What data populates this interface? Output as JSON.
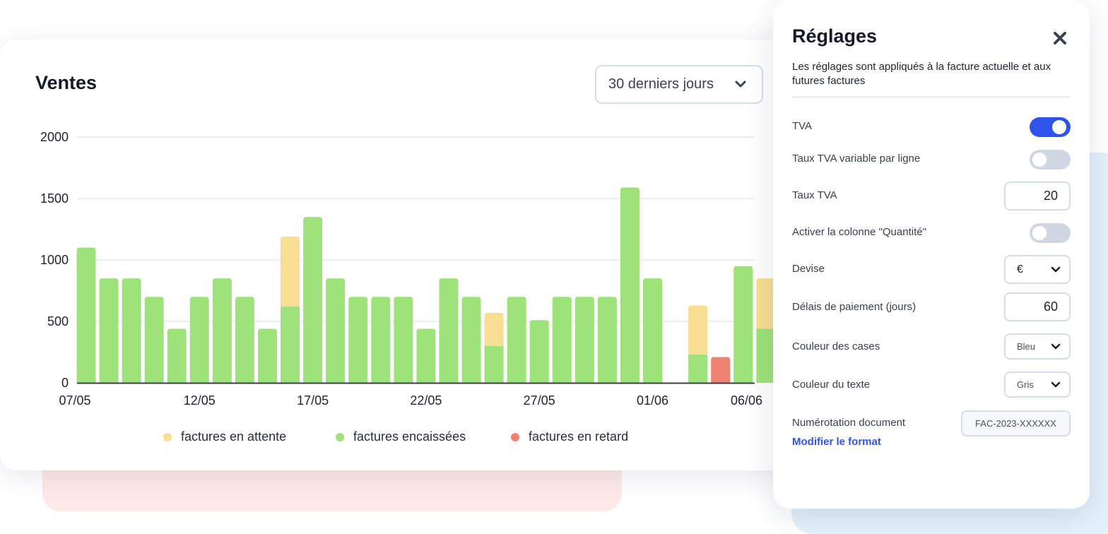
{
  "chart_data": {
    "type": "bar",
    "stacked": true,
    "title": "Ventes",
    "ylim": [
      0,
      2000
    ],
    "yticks": [
      0,
      500,
      1000,
      1500,
      2000
    ],
    "xtick_labels": [
      "07/05",
      "12/05",
      "17/05",
      "22/05",
      "27/05",
      "01/06",
      "06/06"
    ],
    "xtick_indices": [
      0,
      5,
      10,
      15,
      20,
      25,
      30
    ],
    "categories": [
      "07/05",
      "08/05",
      "09/05",
      "10/05",
      "11/05",
      "12/05",
      "13/05",
      "14/05",
      "15/05",
      "16/05",
      "17/05",
      "18/05",
      "19/05",
      "20/05",
      "21/05",
      "22/05",
      "23/05",
      "24/05",
      "25/05",
      "26/05",
      "27/05",
      "28/05",
      "29/05",
      "30/05",
      "31/05",
      "01/06",
      "02/06",
      "03/06",
      "04/06",
      "05/06",
      "06/06"
    ],
    "series": [
      {
        "name": "factures en retard",
        "color": "#ef8270",
        "values": [
          0,
          0,
          0,
          0,
          0,
          0,
          0,
          0,
          0,
          0,
          0,
          0,
          0,
          0,
          0,
          0,
          0,
          0,
          0,
          0,
          0,
          0,
          0,
          0,
          0,
          0,
          0,
          0,
          210,
          0,
          0
        ]
      },
      {
        "name": "factures encaissées",
        "color": "#9ee27a",
        "values": [
          1100,
          850,
          850,
          700,
          440,
          700,
          850,
          700,
          440,
          620,
          1350,
          850,
          700,
          700,
          700,
          440,
          850,
          700,
          300,
          700,
          510,
          700,
          700,
          700,
          1590,
          850,
          0,
          230,
          0,
          950,
          440
        ]
      },
      {
        "name": "factures en attente",
        "color": "#f7de92",
        "values": [
          0,
          0,
          0,
          0,
          0,
          0,
          0,
          0,
          0,
          570,
          0,
          0,
          0,
          0,
          0,
          0,
          0,
          0,
          270,
          0,
          0,
          0,
          0,
          0,
          0,
          0,
          0,
          400,
          0,
          0,
          410
        ]
      }
    ],
    "legend": [
      "factures en attente",
      "factures encaissées",
      "factures en retard"
    ]
  },
  "chart": {
    "range_label": "30 derniers jours"
  },
  "legend_labels": {
    "pending": "factures en attente",
    "paid": "factures encaissées",
    "late": "factures en retard"
  },
  "colors": {
    "accent": "#2f54eb",
    "pending": "#f7de92",
    "paid": "#9ee27a",
    "late": "#ef8270"
  },
  "settings": {
    "title": "Réglages",
    "description": "Les réglages sont appliqués à la facture actuelle et aux futures factures",
    "tva_label": "TVA",
    "tva_enabled": true,
    "variable_rate_label": "Taux TVA variable par ligne",
    "variable_rate_enabled": false,
    "rate_label": "Taux TVA",
    "rate_value": "20",
    "quantity_label": "Activer la colonne \"Quantité\"",
    "quantity_enabled": false,
    "currency_label": "Devise",
    "currency_value": "€",
    "payment_delay_label": "Délais de paiement (jours)",
    "payment_delay_value": "60",
    "box_color_label": "Couleur des cases",
    "box_color_value": "Bleu",
    "text_color_label": "Couleur du texte",
    "text_color_value": "Gris",
    "numbering_label": "Numérotation document",
    "numbering_value": "FAC-2023-XXXXXX",
    "modify_format_link": "Modifier le format"
  }
}
